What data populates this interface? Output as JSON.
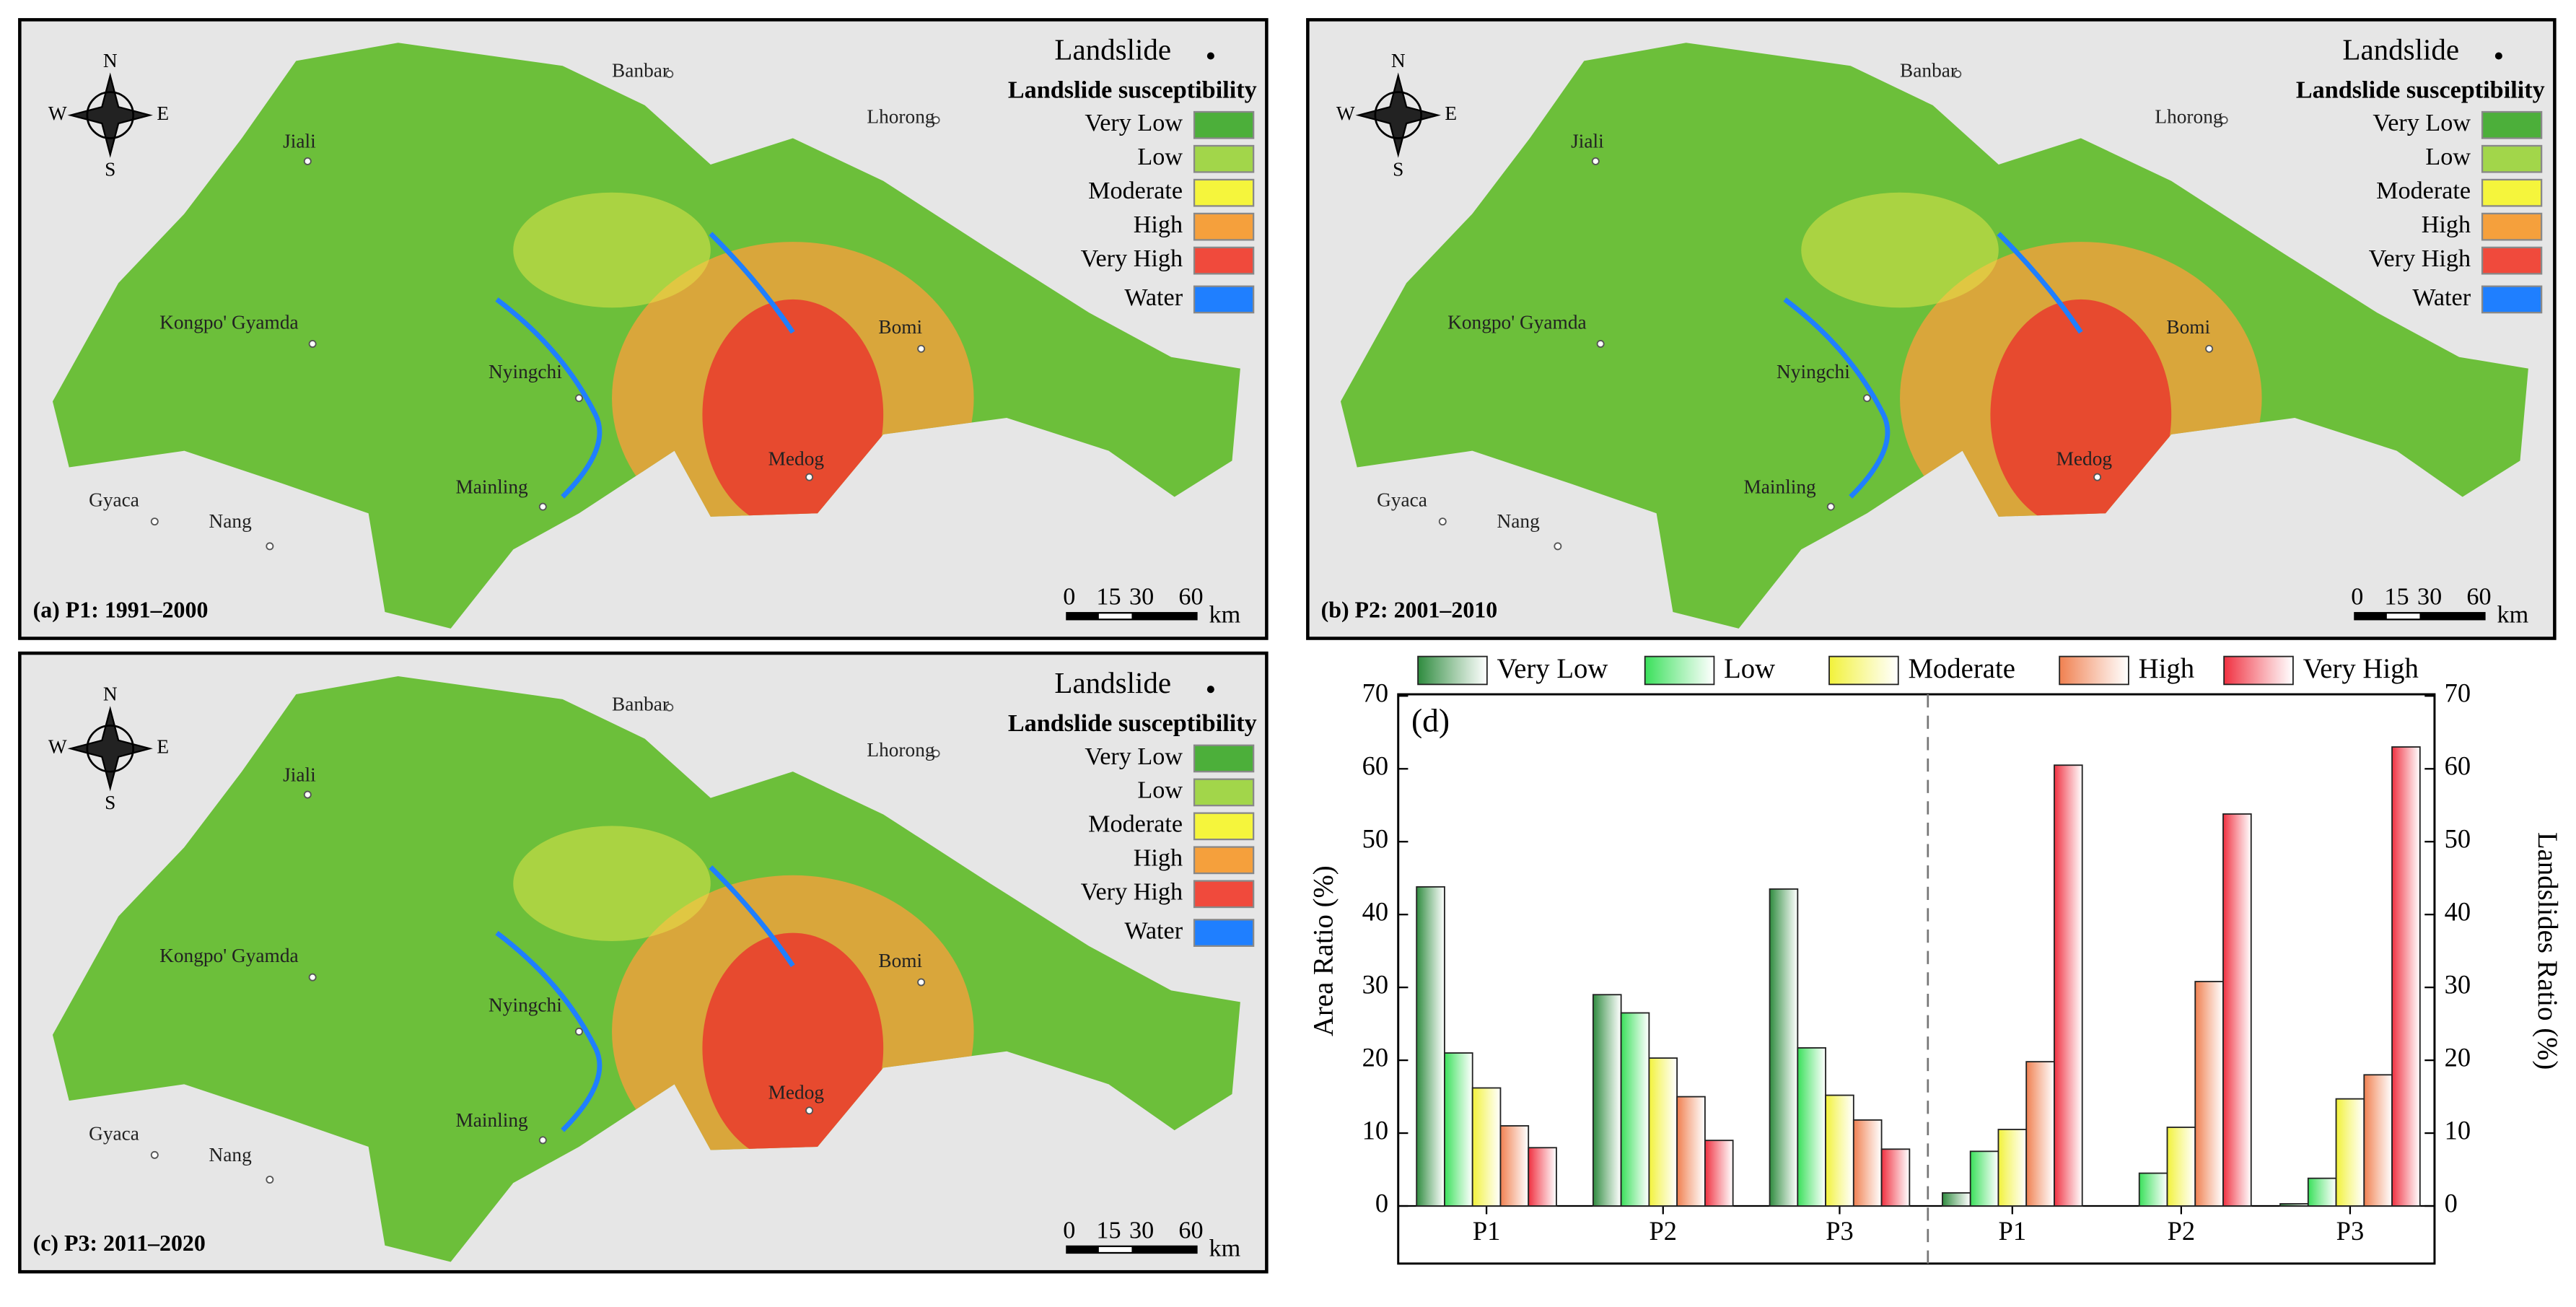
{
  "maps": {
    "landslide_label": "Landslide",
    "legend_title": "Landslide susceptibility",
    "legend_items": [
      "Very Low",
      "Low",
      "Moderate",
      "High",
      "Very High",
      "Water"
    ],
    "places": [
      "Banbar",
      "Lhorong",
      "Jiali",
      "Kongpo' Gyamda",
      "Bomi",
      "Nyingchi",
      "Mainling",
      "Medog",
      "Gyaca",
      "Nang"
    ],
    "compass": [
      "N",
      "S",
      "W",
      "E"
    ],
    "scale": {
      "ticks": [
        0,
        15,
        30,
        60
      ],
      "unit": "km"
    },
    "panels": [
      "(a) P1: 1991–2000",
      "(b) P2: 2001–2010",
      "(c) P3: 2011–2020"
    ]
  },
  "chart_data": [
    {
      "type": "bar",
      "annotation": "(d)",
      "ylabel": "Area Ratio (%)",
      "categories": [
        "P1",
        "P2",
        "P3"
      ],
      "ylim": [
        0,
        70
      ],
      "yticks": [
        0,
        10,
        20,
        30,
        40,
        50,
        60,
        70
      ],
      "series": [
        {
          "name": "Very Low",
          "color": "#2e8b3e",
          "values": [
            43.8,
            29,
            43.5
          ]
        },
        {
          "name": "Low",
          "color": "#39e05a",
          "values": [
            21,
            26.5,
            21.7
          ]
        },
        {
          "name": "Moderate",
          "color": "#f2f23a",
          "values": [
            16.2,
            20.3,
            15.2
          ]
        },
        {
          "name": "High",
          "color": "#f08050",
          "values": [
            11,
            15,
            11.8
          ]
        },
        {
          "name": "Very High",
          "color": "#f03040",
          "values": [
            8,
            9,
            7.8
          ]
        }
      ]
    },
    {
      "type": "bar",
      "y2label": "Landslides Ratio (%)",
      "categories": [
        "P1",
        "P2",
        "P3"
      ],
      "y2lim": [
        0,
        70
      ],
      "y2ticks": [
        0,
        10,
        20,
        30,
        40,
        50,
        60,
        70
      ],
      "series": [
        {
          "color": "#2e8b3e",
          "axis": "y2",
          "values": [
            1.8,
            0,
            0.3
          ]
        },
        {
          "color": "#39e05a",
          "axis": "y2",
          "values": [
            7.5,
            4.5,
            3.8
          ]
        },
        {
          "color": "#f2f23a",
          "axis": "y2",
          "values": [
            10.5,
            10.8,
            14.7
          ]
        },
        {
          "color": "#f08050",
          "axis": "y2",
          "values": [
            19.8,
            30.8,
            18
          ]
        },
        {
          "color": "#f03040",
          "axis": "y2",
          "values": [
            60.5,
            53.8,
            63
          ]
        }
      ]
    }
  ]
}
